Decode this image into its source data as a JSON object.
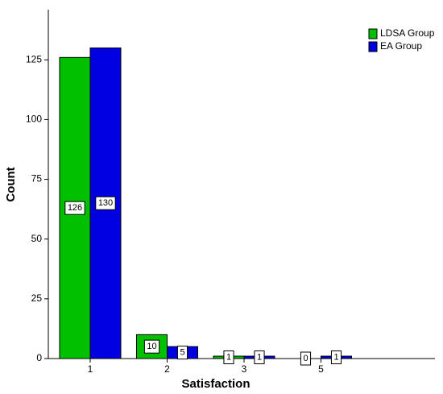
{
  "chart_data": {
    "type": "bar",
    "x_label": "Satisfaction",
    "y_label": "Count",
    "categories": [
      "1",
      "2",
      "3",
      "5"
    ],
    "series": [
      {
        "name": "LDSA Group",
        "color": "#00c000",
        "values": [
          126,
          10,
          1,
          0
        ]
      },
      {
        "name": "EA Group",
        "color": "#0000e0",
        "values": [
          130,
          5,
          1,
          1
        ]
      }
    ],
    "ylim": [
      0,
      146
    ],
    "yticks": [
      0,
      25,
      50,
      75,
      100,
      125
    ],
    "legend": "top-right",
    "grid": false
  }
}
